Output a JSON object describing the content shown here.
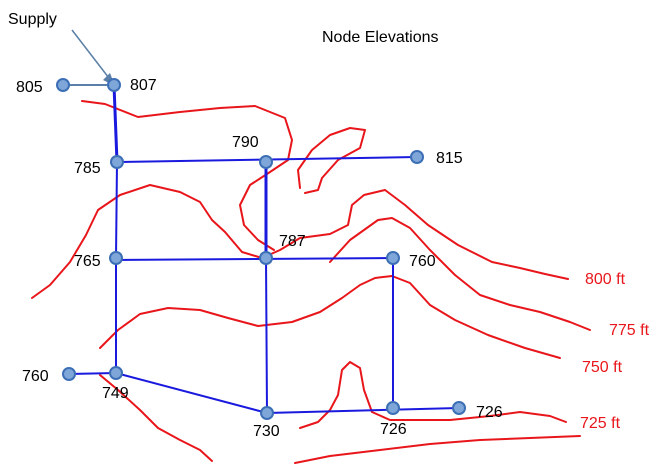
{
  "title": "Node Elevations",
  "supply_label": "Supply",
  "colors": {
    "pipe": "#1a1adf",
    "contour": "#e8161b",
    "node_fill": "#7fa6d8",
    "node_stroke": "#3c6fb5",
    "arrow": "#5a7fa8",
    "contour_text": "#e8161b"
  },
  "nodes": [
    {
      "id": "n805",
      "label": "805"
    },
    {
      "id": "n807",
      "label": "807"
    },
    {
      "id": "n785",
      "label": "785"
    },
    {
      "id": "n790",
      "label": "790"
    },
    {
      "id": "n815",
      "label": "815"
    },
    {
      "id": "n765",
      "label": "765"
    },
    {
      "id": "n787",
      "label": "787"
    },
    {
      "id": "n760a",
      "label": "760"
    },
    {
      "id": "n760b",
      "label": "760"
    },
    {
      "id": "n749",
      "label": "749"
    },
    {
      "id": "n730",
      "label": "730"
    },
    {
      "id": "n726a",
      "label": "726"
    },
    {
      "id": "n726b",
      "label": "726"
    }
  ],
  "contours": [
    {
      "id": "c800",
      "label": "800 ft"
    },
    {
      "id": "c775",
      "label": "775 ft"
    },
    {
      "id": "c750",
      "label": "750 ft"
    },
    {
      "id": "c725",
      "label": "725 ft"
    }
  ]
}
